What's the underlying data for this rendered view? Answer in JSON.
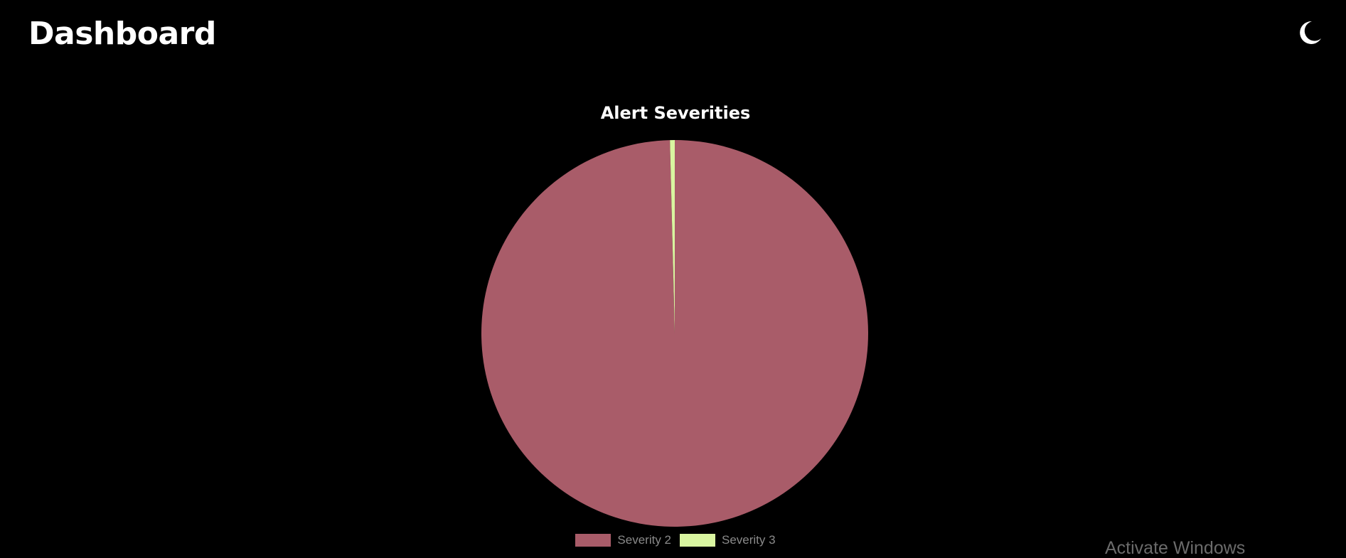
{
  "header": {
    "title": "Dashboard",
    "theme_toggle_icon": "moon-icon"
  },
  "colors": {
    "background": "#000000",
    "severity_2": "#a95c69",
    "severity_3": "#d9f5a0"
  },
  "chart_data": {
    "type": "pie",
    "title": "Alert Severities",
    "categories": [
      "Severity 2",
      "Severity 3"
    ],
    "values": [
      99.6,
      0.4
    ],
    "colors": [
      "#a95c69",
      "#d9f5a0"
    ],
    "legend_position": "bottom"
  },
  "legend": {
    "items": [
      {
        "label": "Severity 2",
        "color": "#a95c69"
      },
      {
        "label": "Severity 3",
        "color": "#d9f5a0"
      }
    ]
  },
  "watermark": {
    "text": "Activate Windows"
  }
}
